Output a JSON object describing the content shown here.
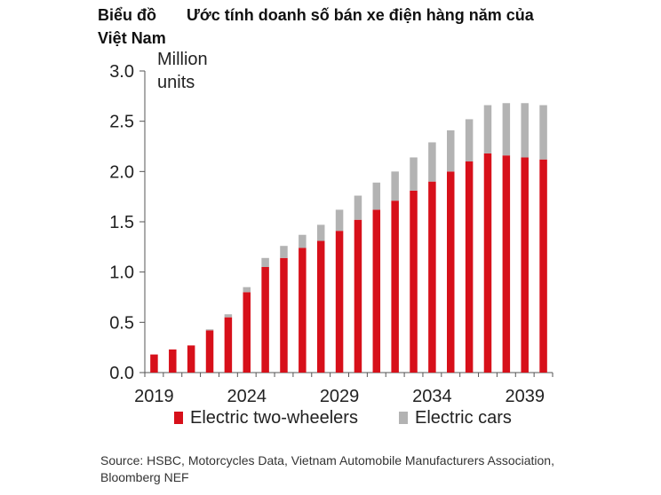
{
  "title_part1": "Biểu đồ",
  "title_part2": "Ước tính doanh số bán xe điện hàng năm của",
  "title_line2": "Việt Nam",
  "source": "Source: HSBC, Motorcycles Data, Vietnam Automobile Manufacturers Association, Bloomberg NEF",
  "colors": {
    "two_wheelers": "#d7101a",
    "cars": "#b3b3b3",
    "axis": "#555555"
  },
  "chart_data": {
    "type": "bar",
    "stacked": true,
    "title": "Ước tính doanh số bán xe điện hàng năm của Việt Nam",
    "ylabel_line1": "Million",
    "ylabel_line2": "units",
    "ylim": [
      0,
      3.0
    ],
    "yticks": [
      "0.0",
      "0.5",
      "1.0",
      "1.5",
      "2.0",
      "2.5",
      "3.0"
    ],
    "x_tick_labels": [
      "2019",
      "2024",
      "2029",
      "2034",
      "2039"
    ],
    "categories": [
      2019,
      2020,
      2021,
      2022,
      2023,
      2024,
      2025,
      2026,
      2027,
      2028,
      2029,
      2030,
      2031,
      2032,
      2033,
      2034,
      2035,
      2036,
      2037,
      2038,
      2039,
      2040
    ],
    "series": [
      {
        "name": "Electric two-wheelers",
        "values": [
          0.18,
          0.23,
          0.27,
          0.42,
          0.55,
          0.8,
          1.05,
          1.14,
          1.24,
          1.31,
          1.41,
          1.52,
          1.62,
          1.71,
          1.81,
          1.9,
          2.0,
          2.1,
          2.18,
          2.16,
          2.14,
          2.12
        ]
      },
      {
        "name": "Electric cars",
        "values": [
          0.0,
          0.0,
          0.0,
          0.01,
          0.03,
          0.05,
          0.09,
          0.12,
          0.13,
          0.16,
          0.21,
          0.24,
          0.27,
          0.29,
          0.33,
          0.39,
          0.41,
          0.42,
          0.48,
          0.52,
          0.54,
          0.54
        ]
      }
    ],
    "legend": [
      "Electric two-wheelers",
      "Electric cars"
    ],
    "legend_position": "bottom"
  }
}
